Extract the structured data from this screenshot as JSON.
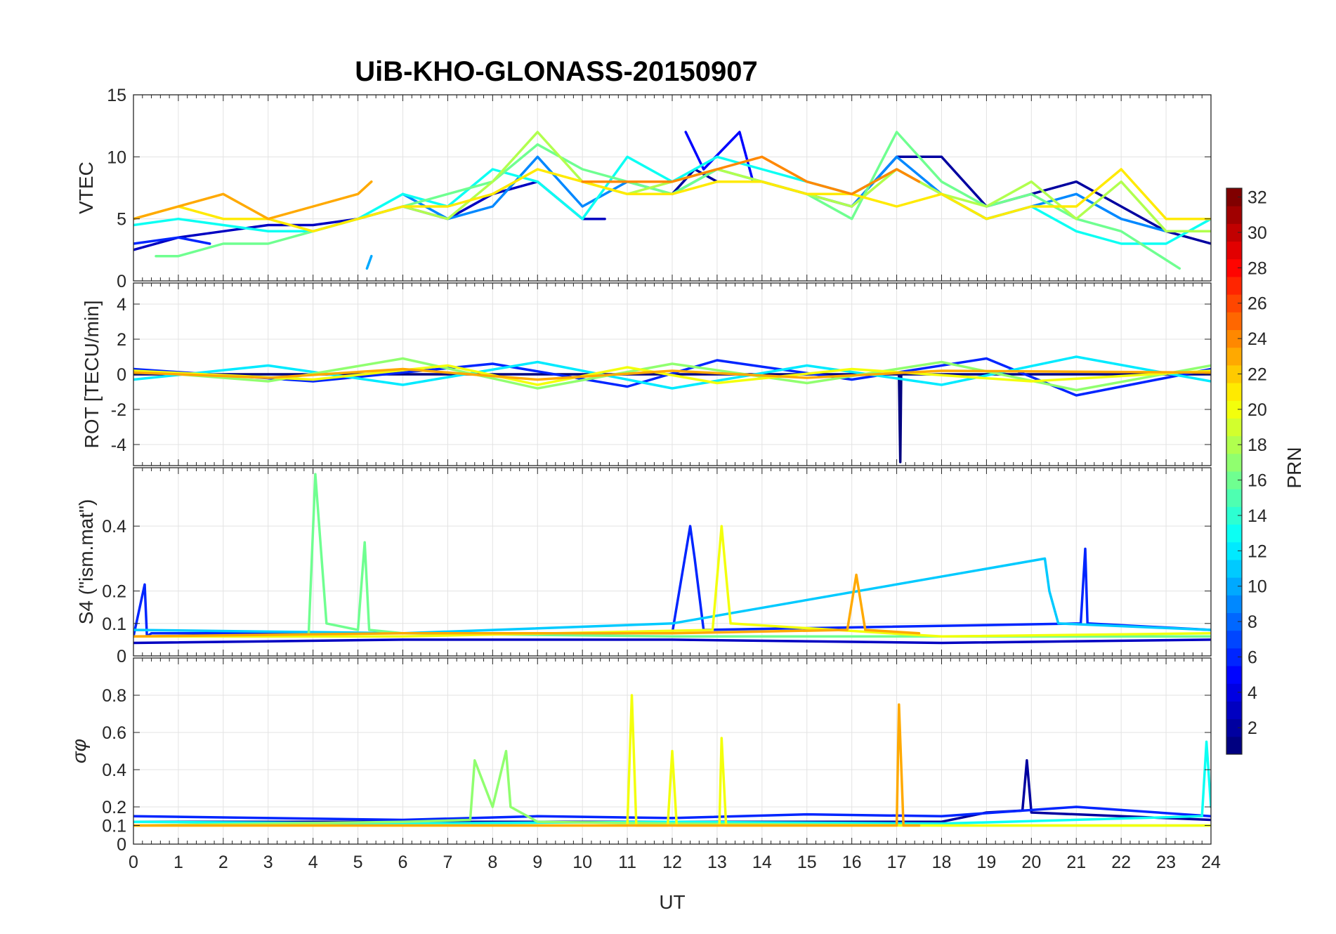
{
  "chart_data": {
    "type": "line",
    "title": "UiB-KHO-GLONASS-20150907",
    "xlabel": "UT",
    "x_range": [
      0,
      24
    ],
    "x_ticks": [
      "0",
      "1",
      "2",
      "3",
      "4",
      "5",
      "6",
      "7",
      "8",
      "9",
      "10",
      "11",
      "12",
      "13",
      "14",
      "15",
      "16",
      "17",
      "18",
      "19",
      "20",
      "21",
      "22",
      "23",
      "24"
    ],
    "grid": true,
    "colorbar": {
      "label": "PRN",
      "range": [
        1,
        32
      ],
      "colormap": "jet",
      "ticks": [
        "2",
        "4",
        "6",
        "8",
        "10",
        "12",
        "14",
        "16",
        "18",
        "20",
        "22",
        "24",
        "26",
        "28",
        "30",
        "32"
      ]
    },
    "panels": [
      {
        "id": "vtec",
        "ylabel": "VTEC",
        "ylim": [
          0,
          15
        ],
        "y_ticks": [
          0,
          5,
          10,
          15
        ],
        "y_tick_labels": [
          "0",
          "5",
          "10",
          "15"
        ],
        "series": [
          {
            "prn": 3,
            "x": [
              0,
              1,
              2,
              3,
              4,
              5,
              6,
              7,
              8,
              9,
              10,
              10.5
            ],
            "y": [
              2.5,
              3.5,
              4,
              4.5,
              4.5,
              5,
              6,
              5,
              7,
              8,
              5,
              5
            ]
          },
          {
            "prn": 6,
            "x": [
              0,
              1,
              1.7
            ],
            "y": [
              3,
              3.5,
              3
            ]
          },
          {
            "prn": 2,
            "x": [
              12,
              12.5,
              13,
              14,
              15,
              16,
              17,
              18,
              19,
              20,
              21,
              22,
              23,
              24
            ],
            "y": [
              7,
              9,
              8,
              8,
              7,
              6,
              10,
              10,
              6,
              7,
              8,
              6,
              4,
              3
            ]
          },
          {
            "prn": 5,
            "x": [
              12.3,
              12.7,
              13.5,
              13.8
            ],
            "y": [
              12,
              9,
              12,
              8
            ]
          },
          {
            "prn": 9,
            "x": [
              6,
              7,
              8,
              9,
              10,
              11,
              12,
              13,
              14,
              15,
              16,
              17,
              18,
              19,
              20,
              21,
              22,
              23,
              24
            ],
            "y": [
              7,
              5,
              6,
              10,
              6,
              8,
              7,
              9,
              8,
              7,
              6,
              10,
              7,
              5,
              6,
              7,
              5,
              4,
              4
            ]
          },
          {
            "prn": 10,
            "x": [
              5.2,
              5.3
            ],
            "y": [
              1,
              2
            ]
          },
          {
            "prn": 13,
            "x": [
              0,
              1,
              2,
              3,
              4,
              5,
              6,
              7,
              8,
              9,
              10,
              11,
              12,
              13,
              14,
              15,
              16,
              17,
              18,
              19,
              20,
              21,
              22,
              23,
              24
            ],
            "y": [
              4.5,
              5,
              4.5,
              4,
              4,
              5,
              7,
              6,
              9,
              8,
              5,
              10,
              8,
              10,
              9,
              8,
              7,
              9,
              7,
              5,
              6,
              4,
              3,
              3,
              5
            ]
          },
          {
            "prn": 16,
            "x": [
              0.5,
              1,
              2,
              3,
              4,
              5,
              6,
              7,
              8,
              9,
              10,
              11,
              12,
              13,
              14,
              15,
              16,
              17,
              18,
              19,
              20,
              21,
              22,
              23.3
            ],
            "y": [
              2,
              2,
              3,
              3,
              4,
              5,
              6,
              7,
              8,
              11,
              9,
              8,
              7,
              9,
              8,
              7,
              5,
              12,
              8,
              6,
              7,
              5,
              4,
              1
            ]
          },
          {
            "prn": 18,
            "x": [
              6,
              7,
              8,
              9,
              10,
              11,
              12,
              13,
              14,
              15,
              16,
              17,
              18,
              19,
              20,
              21,
              22,
              23,
              24
            ],
            "y": [
              6,
              5,
              8,
              12,
              8,
              7,
              8,
              9,
              8,
              7,
              6,
              9,
              7,
              6,
              8,
              5,
              8,
              4,
              4
            ]
          },
          {
            "prn": 21,
            "x": [
              0,
              1,
              2,
              3,
              4,
              5,
              6,
              7,
              8,
              9,
              10,
              11,
              12,
              13,
              14,
              15,
              16,
              17,
              18,
              19,
              20,
              21,
              22,
              23,
              24
            ],
            "y": [
              5,
              6,
              5,
              5,
              4,
              5,
              6,
              6,
              7,
              9,
              8,
              7,
              7,
              8,
              8,
              7,
              7,
              6,
              7,
              5,
              6,
              6,
              9,
              5,
              5
            ]
          },
          {
            "prn": 23,
            "x": [
              0,
              1,
              2,
              2.5,
              3,
              4,
              5,
              5.3
            ],
            "y": [
              5,
              6,
              7,
              6,
              5,
              6,
              7,
              8
            ]
          },
          {
            "prn": 24,
            "x": [
              10,
              11,
              12,
              13,
              14,
              15,
              16,
              17,
              17.5
            ],
            "y": [
              8,
              8,
              8,
              9,
              10,
              8,
              7,
              9,
              8
            ]
          }
        ]
      },
      {
        "id": "rot",
        "ylabel": "ROT [TECU/min]",
        "ylim": [
          -5.2,
          5.2
        ],
        "y_ticks": [
          -4,
          -2,
          0,
          2,
          4
        ],
        "y_tick_labels": [
          "-4",
          "-2",
          "0",
          "2",
          "4"
        ],
        "series": [
          {
            "prn": 1,
            "x": [
              0,
              17.05,
              17.08,
              17.1,
              24
            ],
            "y": [
              0,
              0,
              -5,
              0,
              0
            ]
          },
          {
            "prn": 6,
            "x": [
              0,
              4,
              8,
              11,
              13,
              16,
              19,
              21,
              24
            ],
            "y": [
              0.3,
              -0.4,
              0.6,
              -0.7,
              0.8,
              -0.3,
              0.9,
              -1.2,
              0.3
            ]
          },
          {
            "prn": 12,
            "x": [
              0,
              3,
              6,
              9,
              12,
              15,
              18,
              21,
              24
            ],
            "y": [
              -0.3,
              0.5,
              -0.6,
              0.7,
              -0.8,
              0.5,
              -0.6,
              1.0,
              -0.4
            ]
          },
          {
            "prn": 17,
            "x": [
              0,
              3,
              6,
              9,
              12,
              15,
              18,
              21,
              24
            ],
            "y": [
              0.2,
              -0.4,
              0.9,
              -0.8,
              0.6,
              -0.5,
              0.7,
              -0.9,
              0.5
            ]
          },
          {
            "prn": 20,
            "x": [
              0,
              4,
              7,
              9,
              11,
              13,
              16,
              20,
              24
            ],
            "y": [
              0.2,
              -0.3,
              0.5,
              -0.6,
              0.4,
              -0.5,
              0.3,
              -0.4,
              0.2
            ]
          },
          {
            "prn": 23,
            "x": [
              0,
              3,
              6,
              9,
              12,
              15,
              18,
              24
            ],
            "y": [
              0.1,
              -0.2,
              0.3,
              -0.3,
              0.2,
              -0.2,
              0.2,
              0.1
            ]
          }
        ]
      },
      {
        "id": "s4",
        "ylabel": "S4 (\"ism.mat\")",
        "ylim": [
          0,
          0.58
        ],
        "y_ticks": [
          0,
          0.1,
          0.2,
          0.4
        ],
        "y_tick_labels": [
          "0",
          "0.1",
          "0.2",
          "0.4"
        ],
        "series": [
          {
            "prn": 3,
            "x": [
              0,
              6,
              12,
              18,
              24
            ],
            "y": [
              0.04,
              0.05,
              0.05,
              0.04,
              0.05
            ]
          },
          {
            "prn": 6,
            "x": [
              0,
              0.25,
              0.3,
              0.4,
              12,
              12.4,
              12.5,
              12.7,
              21.1,
              21.2,
              21.25,
              24
            ],
            "y": [
              0.06,
              0.22,
              0.06,
              0.07,
              0.07,
              0.4,
              0.3,
              0.08,
              0.1,
              0.33,
              0.1,
              0.08
            ]
          },
          {
            "prn": 11,
            "x": [
              0,
              6,
              12,
              20.3,
              20.4,
              20.6,
              24
            ],
            "y": [
              0.08,
              0.07,
              0.1,
              0.3,
              0.2,
              0.1,
              0.08
            ]
          },
          {
            "prn": 16,
            "x": [
              0,
              3.9,
              4.05,
              4.3,
              5.0,
              5.15,
              5.25,
              6,
              12,
              18,
              24
            ],
            "y": [
              0.06,
              0.06,
              0.56,
              0.1,
              0.08,
              0.35,
              0.08,
              0.07,
              0.06,
              0.06,
              0.06
            ]
          },
          {
            "prn": 20,
            "x": [
              0,
              6,
              12.9,
              13.1,
              13.3,
              18,
              24
            ],
            "y": [
              0.06,
              0.06,
              0.08,
              0.4,
              0.1,
              0.06,
              0.07
            ]
          },
          {
            "prn": 23,
            "x": [
              0,
              6,
              12,
              15.9,
              16.1,
              16.3,
              17.5
            ],
            "y": [
              0.06,
              0.07,
              0.07,
              0.08,
              0.25,
              0.08,
              0.07
            ]
          }
        ]
      },
      {
        "id": "sigma_phi",
        "ylabel": "σφ",
        "ylim": [
          0,
          1.0
        ],
        "y_ticks": [
          0,
          0.1,
          0.2,
          0.4,
          0.6,
          0.8
        ],
        "y_tick_labels": [
          "0",
          "0.1",
          "0.2",
          "0.4",
          "0.6",
          "0.8"
        ],
        "series": [
          {
            "prn": 2,
            "x": [
              0,
              18,
              19,
              19.8,
              19.9,
              20,
              22,
              24
            ],
            "y": [
              0.12,
              0.12,
              0.17,
              0.18,
              0.45,
              0.17,
              0.15,
              0.13
            ]
          },
          {
            "prn": 6,
            "x": [
              0,
              3,
              6,
              9,
              12,
              15,
              18,
              21,
              24
            ],
            "y": [
              0.15,
              0.14,
              0.13,
              0.15,
              0.14,
              0.16,
              0.15,
              0.2,
              0.15
            ]
          },
          {
            "prn": 13,
            "x": [
              0,
              6,
              12,
              18,
              23.8,
              23.9,
              24
            ],
            "y": [
              0.12,
              0.11,
              0.12,
              0.11,
              0.15,
              0.55,
              0.2
            ]
          },
          {
            "prn": 17,
            "x": [
              0,
              6,
              7.5,
              7.6,
              8,
              8.3,
              8.4,
              9,
              12,
              18,
              24
            ],
            "y": [
              0.1,
              0.12,
              0.13,
              0.45,
              0.2,
              0.5,
              0.2,
              0.12,
              0.11,
              0.1,
              0.1
            ]
          },
          {
            "prn": 20,
            "x": [
              0,
              6,
              11.0,
              11.1,
              11.2,
              11.9,
              12.0,
              12.1,
              13.05,
              13.1,
              13.2,
              18,
              24
            ],
            "y": [
              0.1,
              0.1,
              0.1,
              0.8,
              0.1,
              0.1,
              0.5,
              0.1,
              0.1,
              0.57,
              0.1,
              0.1,
              0.1
            ]
          },
          {
            "prn": 23,
            "x": [
              0,
              6,
              12,
              17.0,
              17.05,
              17.15,
              17.5
            ],
            "y": [
              0.1,
              0.1,
              0.1,
              0.1,
              0.75,
              0.1,
              0.1
            ]
          }
        ]
      }
    ]
  }
}
